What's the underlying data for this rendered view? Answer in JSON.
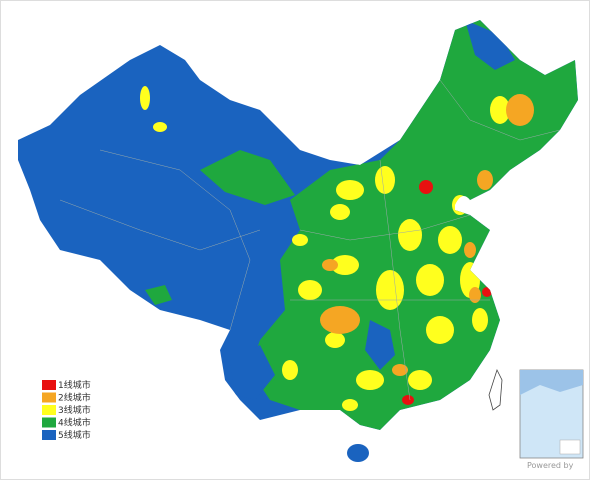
{
  "legend": {
    "items": [
      {
        "label": "1线城市",
        "color": "#e81010"
      },
      {
        "label": "2线城市",
        "color": "#f5a623"
      },
      {
        "label": "3线城市",
        "color": "#ffff1e"
      },
      {
        "label": "4线城市",
        "color": "#1fa83e"
      },
      {
        "label": "5线城市",
        "color": "#1a63bf"
      }
    ]
  },
  "footer": {
    "credit": "Powered by"
  }
}
